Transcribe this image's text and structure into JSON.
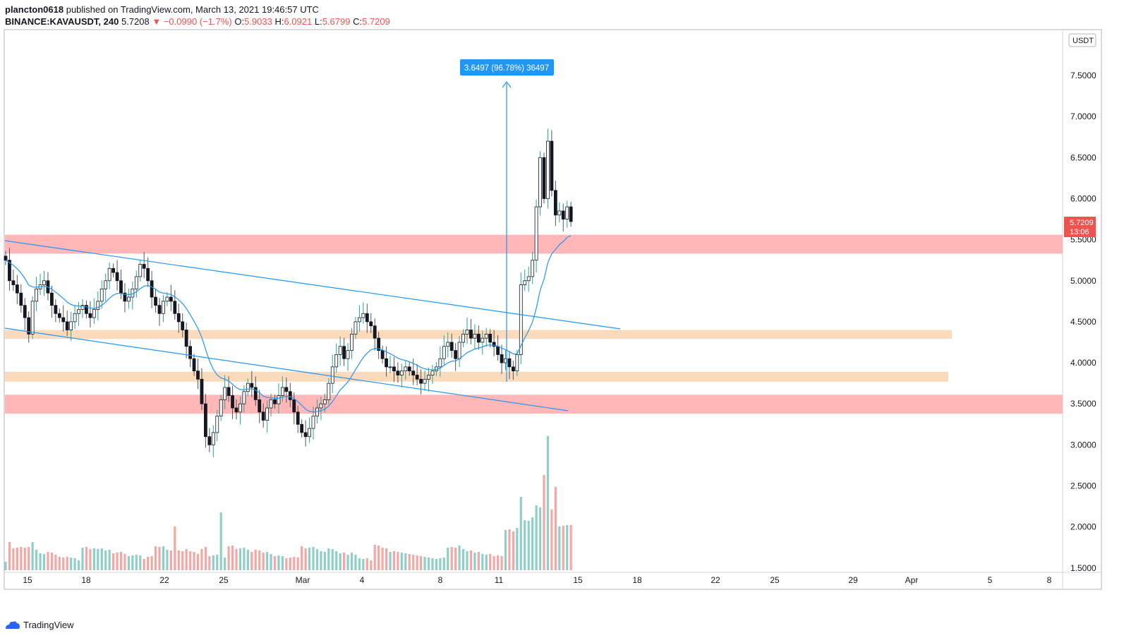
{
  "header": {
    "user": "plancton0618",
    "published_text": "published on TradingView.com, March 13, 2021 19:46:57 UTC",
    "symbol": "BINANCE:KAVAUSDT, 240",
    "last": "5.7208",
    "change": "−0.0990 (−1.7%)",
    "o_label": "O:",
    "o_val": "5.9033",
    "h_label": "H:",
    "h_val": "6.0921",
    "l_label": "L:",
    "l_val": "5.6799",
    "c_label": "C:",
    "c_val": "5.7209"
  },
  "footer": {
    "brand": "TradingView"
  },
  "colors": {
    "up": "#26a69a",
    "down": "#ef5350",
    "line": "#2196f3",
    "zone_red": "#ffb3b3",
    "zone_orange": "#fcd9b8",
    "vol_up": "#8fcfc8",
    "vol_down": "#f4a8a6"
  },
  "chart_data": {
    "type": "candlestick",
    "currency": "USDT",
    "y_ticks": [
      "7.5000",
      "7.0000",
      "6.5000",
      "6.0000",
      "5.5000",
      "5.0000",
      "4.5000",
      "4.0000",
      "3.5000",
      "3.0000",
      "2.5000",
      "2.0000",
      "1.5000"
    ],
    "x_ticks": [
      "15",
      "18",
      "22",
      "25",
      "Mar",
      "4",
      "8",
      "11",
      "15",
      "18",
      "22",
      "25",
      "29",
      "Apr",
      "5",
      "8"
    ],
    "last_price_label": "5.7209",
    "countdown_label": "13:06",
    "measure_label": "3.6497 (96.78%) 36497",
    "zones": [
      {
        "type": "resistance",
        "color": "red",
        "from": 5.33,
        "to": 5.56
      },
      {
        "type": "support",
        "color": "orange",
        "from": 4.29,
        "to": 4.4
      },
      {
        "type": "support",
        "color": "orange",
        "from": 3.77,
        "to": 3.89
      },
      {
        "type": "support",
        "color": "red",
        "from": 3.38,
        "to": 3.61
      }
    ],
    "trendlines": [
      {
        "from": [
          "Feb 13",
          5.5
        ],
        "to": [
          "Mar 17",
          4.41
        ]
      },
      {
        "from": [
          "Feb 13",
          4.42
        ],
        "to": [
          "Mar 14",
          3.41
        ]
      }
    ],
    "closes": [
      5.25,
      5.0,
      4.95,
      4.85,
      4.7,
      4.55,
      4.35,
      4.75,
      4.9,
      4.95,
      5.0,
      4.85,
      4.7,
      4.6,
      4.55,
      4.5,
      4.4,
      4.5,
      4.6,
      4.65,
      4.7,
      4.6,
      4.55,
      4.65,
      4.75,
      4.9,
      5.0,
      5.15,
      5.1,
      5.0,
      4.85,
      4.75,
      4.8,
      4.9,
      5.05,
      5.2,
      5.15,
      5.0,
      4.8,
      4.7,
      4.6,
      4.75,
      4.8,
      4.75,
      4.6,
      4.5,
      4.4,
      4.2,
      4.05,
      3.9,
      3.8,
      3.5,
      3.1,
      3.0,
      3.15,
      3.35,
      3.55,
      3.7,
      3.6,
      3.45,
      3.4,
      3.5,
      3.65,
      3.75,
      3.7,
      3.55,
      3.4,
      3.3,
      3.45,
      3.55,
      3.5,
      3.6,
      3.7,
      3.65,
      3.55,
      3.4,
      3.25,
      3.15,
      3.1,
      3.2,
      3.35,
      3.45,
      3.5,
      3.55,
      3.75,
      3.95,
      4.1,
      4.2,
      4.05,
      4.15,
      4.35,
      4.5,
      4.55,
      4.6,
      4.5,
      4.45,
      4.3,
      4.15,
      4.05,
      3.95,
      3.95,
      3.9,
      3.85,
      3.9,
      3.95,
      3.9,
      3.85,
      3.8,
      3.75,
      3.8,
      3.85,
      3.9,
      3.95,
      4.05,
      4.2,
      4.25,
      4.15,
      4.05,
      4.25,
      4.35,
      4.4,
      4.3,
      4.35,
      4.25,
      4.3,
      4.35,
      4.25,
      4.2,
      4.1,
      4.0,
      4.05,
      3.95,
      3.9,
      4.1,
      4.95,
      5.0,
      5.05,
      5.25,
      5.9,
      6.5,
      6.0,
      6.7,
      6.1,
      5.8,
      5.85,
      5.75,
      5.9,
      5.7209
    ],
    "volume_peak_candle_index": 141,
    "ema_last": 5.36
  }
}
